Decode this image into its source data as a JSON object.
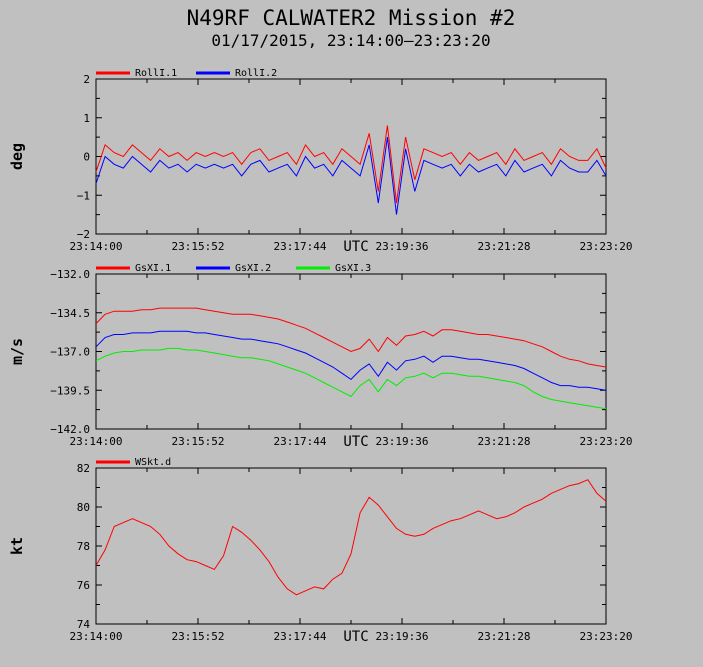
{
  "header": {
    "title": "N49RF CALWATER2 Mission #2",
    "subtitle": "01/17/2015, 23:14:00–23:23:20"
  },
  "chart_data": [
    {
      "type": "line",
      "ylabel": "deg",
      "xlabel": "UTC",
      "ylim": [
        -2,
        2
      ],
      "yticks": [
        2,
        1,
        0,
        -1,
        -2
      ],
      "ytick_labels": [
        "2",
        "1",
        "0",
        "−1",
        "−2"
      ],
      "xlim": [
        "23:14:00",
        "23:23:20"
      ],
      "xtick_labels": [
        "23:14:00",
        "23:15:52",
        "23:17:44",
        "23:19:36",
        "23:21:28",
        "23:23:20"
      ],
      "legend_position": "top-left",
      "x": [
        0,
        10,
        20,
        30,
        40,
        50,
        60,
        70,
        80,
        90,
        100,
        110,
        120,
        130,
        140,
        150,
        160,
        170,
        180,
        190,
        200,
        210,
        220,
        230,
        240,
        250,
        260,
        270,
        280,
        290,
        300,
        310,
        320,
        330,
        340,
        350,
        360,
        370,
        380,
        390,
        400,
        410,
        420,
        430,
        440,
        450,
        460,
        470,
        480,
        490,
        500,
        510,
        520,
        530,
        540,
        550,
        560
      ],
      "series": [
        {
          "name": "RollI.1",
          "color": "#ff0000",
          "values": [
            -0.4,
            0.3,
            0.1,
            0.0,
            0.3,
            0.1,
            -0.1,
            0.2,
            0.0,
            0.1,
            -0.1,
            0.1,
            0.0,
            0.1,
            0.0,
            0.1,
            -0.2,
            0.1,
            0.2,
            -0.1,
            0.0,
            0.1,
            -0.2,
            0.3,
            0.0,
            0.1,
            -0.2,
            0.2,
            0.0,
            -0.2,
            0.6,
            -0.9,
            0.8,
            -1.2,
            0.5,
            -0.6,
            0.2,
            0.1,
            0.0,
            0.1,
            -0.2,
            0.1,
            -0.1,
            0.0,
            0.1,
            -0.2,
            0.2,
            -0.1,
            0.0,
            0.1,
            -0.2,
            0.2,
            0.0,
            -0.1,
            -0.1,
            0.2,
            -0.3
          ]
        },
        {
          "name": "RollI.2",
          "color": "#0000ff",
          "values": [
            -0.7,
            0.0,
            -0.2,
            -0.3,
            0.0,
            -0.2,
            -0.4,
            -0.1,
            -0.3,
            -0.2,
            -0.4,
            -0.2,
            -0.3,
            -0.2,
            -0.3,
            -0.2,
            -0.5,
            -0.2,
            -0.1,
            -0.4,
            -0.3,
            -0.2,
            -0.5,
            0.0,
            -0.3,
            -0.2,
            -0.5,
            -0.1,
            -0.3,
            -0.5,
            0.3,
            -1.2,
            0.5,
            -1.5,
            0.2,
            -0.9,
            -0.1,
            -0.2,
            -0.3,
            -0.2,
            -0.5,
            -0.2,
            -0.4,
            -0.3,
            -0.2,
            -0.5,
            -0.1,
            -0.4,
            -0.3,
            -0.2,
            -0.5,
            -0.1,
            -0.3,
            -0.4,
            -0.4,
            -0.1,
            -0.5
          ]
        }
      ]
    },
    {
      "type": "line",
      "ylabel": "m/s",
      "xlabel": "UTC",
      "ylim": [
        -142,
        -132
      ],
      "yticks": [
        -132,
        -134.5,
        -137,
        -139.5,
        -142
      ],
      "ytick_labels": [
        "−132.0",
        "−134.5",
        "−137.0",
        "−139.5",
        "−142.0"
      ],
      "xlim": [
        "23:14:00",
        "23:23:20"
      ],
      "xtick_labels": [
        "23:14:00",
        "23:15:52",
        "23:17:44",
        "23:19:36",
        "23:21:28",
        "23:23:20"
      ],
      "legend_position": "top-left",
      "x": [
        0,
        10,
        20,
        30,
        40,
        50,
        60,
        70,
        80,
        90,
        100,
        110,
        120,
        130,
        140,
        150,
        160,
        170,
        180,
        190,
        200,
        210,
        220,
        230,
        240,
        250,
        260,
        270,
        280,
        290,
        300,
        310,
        320,
        330,
        340,
        350,
        360,
        370,
        380,
        390,
        400,
        410,
        420,
        430,
        440,
        450,
        460,
        470,
        480,
        490,
        500,
        510,
        520,
        530,
        540,
        550,
        560
      ],
      "series": [
        {
          "name": "GsXI.1",
          "color": "#ff0000",
          "values": [
            -135.2,
            -134.6,
            -134.4,
            -134.4,
            -134.4,
            -134.3,
            -134.3,
            -134.2,
            -134.2,
            -134.2,
            -134.2,
            -134.2,
            -134.3,
            -134.4,
            -134.5,
            -134.6,
            -134.6,
            -134.6,
            -134.7,
            -134.8,
            -134.9,
            -135.1,
            -135.3,
            -135.5,
            -135.8,
            -136.1,
            -136.4,
            -136.7,
            -137.0,
            -136.8,
            -136.2,
            -137.0,
            -136.1,
            -136.6,
            -136.0,
            -135.9,
            -135.7,
            -136.0,
            -135.6,
            -135.6,
            -135.7,
            -135.8,
            -135.9,
            -135.9,
            -136.0,
            -136.1,
            -136.2,
            -136.3,
            -136.5,
            -136.7,
            -137.0,
            -137.3,
            -137.5,
            -137.6,
            -137.8,
            -137.9,
            -138.0
          ]
        },
        {
          "name": "GsXI.2",
          "color": "#0000ff",
          "values": [
            -136.7,
            -136.1,
            -135.9,
            -135.9,
            -135.8,
            -135.8,
            -135.8,
            -135.7,
            -135.7,
            -135.7,
            -135.7,
            -135.8,
            -135.8,
            -135.9,
            -136.0,
            -136.1,
            -136.2,
            -136.2,
            -136.3,
            -136.4,
            -136.5,
            -136.7,
            -136.9,
            -137.1,
            -137.4,
            -137.7,
            -138.0,
            -138.4,
            -138.8,
            -138.2,
            -137.8,
            -138.6,
            -137.7,
            -138.2,
            -137.6,
            -137.5,
            -137.3,
            -137.7,
            -137.3,
            -137.3,
            -137.4,
            -137.5,
            -137.5,
            -137.6,
            -137.7,
            -137.8,
            -137.9,
            -138.1,
            -138.4,
            -138.7,
            -139.0,
            -139.2,
            -139.2,
            -139.3,
            -139.3,
            -139.4,
            -139.5
          ]
        },
        {
          "name": "GsXI.3",
          "color": "#00ee00",
          "values": [
            -137.6,
            -137.3,
            -137.1,
            -137.0,
            -137.0,
            -136.9,
            -136.9,
            -136.9,
            -136.8,
            -136.8,
            -136.9,
            -136.9,
            -137.0,
            -137.1,
            -137.2,
            -137.3,
            -137.4,
            -137.4,
            -137.5,
            -137.6,
            -137.8,
            -138.0,
            -138.2,
            -138.4,
            -138.7,
            -139.0,
            -139.3,
            -139.6,
            -139.9,
            -139.2,
            -138.8,
            -139.6,
            -138.8,
            -139.2,
            -138.7,
            -138.6,
            -138.4,
            -138.7,
            -138.4,
            -138.4,
            -138.5,
            -138.6,
            -138.6,
            -138.7,
            -138.8,
            -138.9,
            -139.0,
            -139.2,
            -139.6,
            -139.9,
            -140.1,
            -140.2,
            -140.3,
            -140.4,
            -140.5,
            -140.6,
            -140.7
          ]
        }
      ]
    },
    {
      "type": "line",
      "ylabel": "kt",
      "xlabel": "UTC",
      "ylim": [
        74,
        82
      ],
      "yticks": [
        82,
        80,
        78,
        76,
        74
      ],
      "ytick_labels": [
        "82",
        "80",
        "78",
        "76",
        "74"
      ],
      "xlim": [
        "23:14:00",
        "23:23:20"
      ],
      "xtick_labels": [
        "23:14:00",
        "23:15:52",
        "23:17:44",
        "23:19:36",
        "23:21:28",
        "23:23:20"
      ],
      "legend_position": "top-left",
      "x": [
        0,
        10,
        20,
        30,
        40,
        50,
        60,
        70,
        80,
        90,
        100,
        110,
        120,
        130,
        140,
        150,
        160,
        170,
        180,
        190,
        200,
        210,
        220,
        230,
        240,
        250,
        260,
        270,
        280,
        290,
        300,
        310,
        320,
        330,
        340,
        350,
        360,
        370,
        380,
        390,
        400,
        410,
        420,
        430,
        440,
        450,
        460,
        470,
        480,
        490,
        500,
        510,
        520,
        530,
        540,
        550,
        560
      ],
      "series": [
        {
          "name": "WSkt.d",
          "color": "#ff0000",
          "values": [
            77.0,
            77.8,
            79.0,
            79.2,
            79.4,
            79.2,
            79.0,
            78.6,
            78.0,
            77.6,
            77.3,
            77.2,
            77.0,
            76.8,
            77.5,
            79.0,
            78.7,
            78.3,
            77.8,
            77.2,
            76.4,
            75.8,
            75.5,
            75.7,
            75.9,
            75.8,
            76.3,
            76.6,
            77.6,
            79.7,
            80.5,
            80.1,
            79.5,
            78.9,
            78.6,
            78.5,
            78.6,
            78.9,
            79.1,
            79.3,
            79.4,
            79.6,
            79.8,
            79.6,
            79.4,
            79.5,
            79.7,
            80.0,
            80.2,
            80.4,
            80.7,
            80.9,
            81.1,
            81.2,
            81.4,
            80.7,
            80.3
          ]
        }
      ]
    }
  ]
}
